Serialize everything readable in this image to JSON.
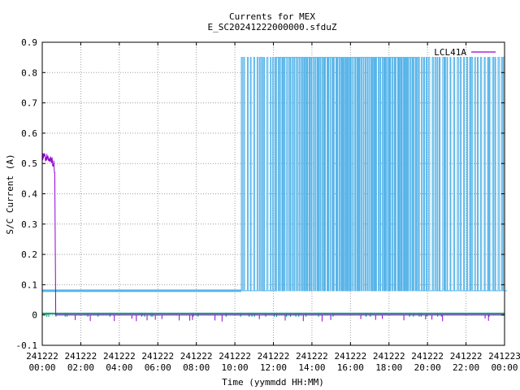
{
  "chart_data": {
    "type": "line",
    "title": "Currents for MEX",
    "subtitle": "E_SC20241222000000.sfduZ",
    "xlabel": "Time (yymmdd HH:MM)",
    "ylabel": "S/C Current (A)",
    "xlim": [
      "2024-12-22 00:00",
      "2024-12-23 00:00"
    ],
    "ylim": [
      -0.1,
      0.9
    ],
    "grid": true,
    "legend_position": "top-right",
    "yticks": [
      "-0.1",
      "0",
      "0.1",
      "0.2",
      "0.3",
      "0.4",
      "0.5",
      "0.6",
      "0.7",
      "0.8",
      "0.9"
    ],
    "xticks": [
      {
        "date": "241222",
        "time": "00:00"
      },
      {
        "date": "241222",
        "time": "02:00"
      },
      {
        "date": "241222",
        "time": "04:00"
      },
      {
        "date": "241222",
        "time": "06:00"
      },
      {
        "date": "241222",
        "time": "08:00"
      },
      {
        "date": "241222",
        "time": "10:00"
      },
      {
        "date": "241222",
        "time": "12:00"
      },
      {
        "date": "241222",
        "time": "14:00"
      },
      {
        "date": "241222",
        "time": "16:00"
      },
      {
        "date": "241222",
        "time": "18:00"
      },
      {
        "date": "241222",
        "time": "20:00"
      },
      {
        "date": "241222",
        "time": "22:00"
      },
      {
        "date": "241223",
        "time": "00:00"
      }
    ],
    "series": [
      {
        "name": "LCL41A",
        "color": "#9400d3",
        "description_points": [
          {
            "x": "2024-12-22 00:00",
            "y": 0.52
          },
          {
            "x": "2024-12-22 00:20",
            "y": 0.51
          },
          {
            "x": "2024-12-22 00:35",
            "y": 0.5
          },
          {
            "x": "2024-12-22 00:40",
            "y": 0.47
          },
          {
            "x": "2024-12-22 00:42",
            "y": 0.0
          },
          {
            "x": "2024-12-23 00:00",
            "y": 0.0
          }
        ]
      },
      {
        "color": "#56b4e9",
        "description_points": [
          {
            "x": "2024-12-22 00:00",
            "y": 0.08
          },
          {
            "x": "2024-12-22 10:15",
            "y": 0.08
          },
          {
            "x": "2024-12-22 10:20",
            "y": 0.85
          },
          {
            "x": "2024-12-23 00:00",
            "y": 0.85
          }
        ],
        "low_level": 0.08,
        "high_level": 0.85,
        "toggling_from": "2024-12-22 10:20",
        "toggling_to": "2024-12-23 00:00",
        "dense_high_period": [
          "2024-12-22 12:00",
          "2024-12-22 19:30"
        ]
      },
      {
        "color": "#009e73",
        "level": 0.005,
        "description_points": [
          {
            "x": "2024-12-22 00:00",
            "y": 0.005
          },
          {
            "x": "2024-12-23 00:00",
            "y": 0.005
          }
        ]
      }
    ]
  }
}
